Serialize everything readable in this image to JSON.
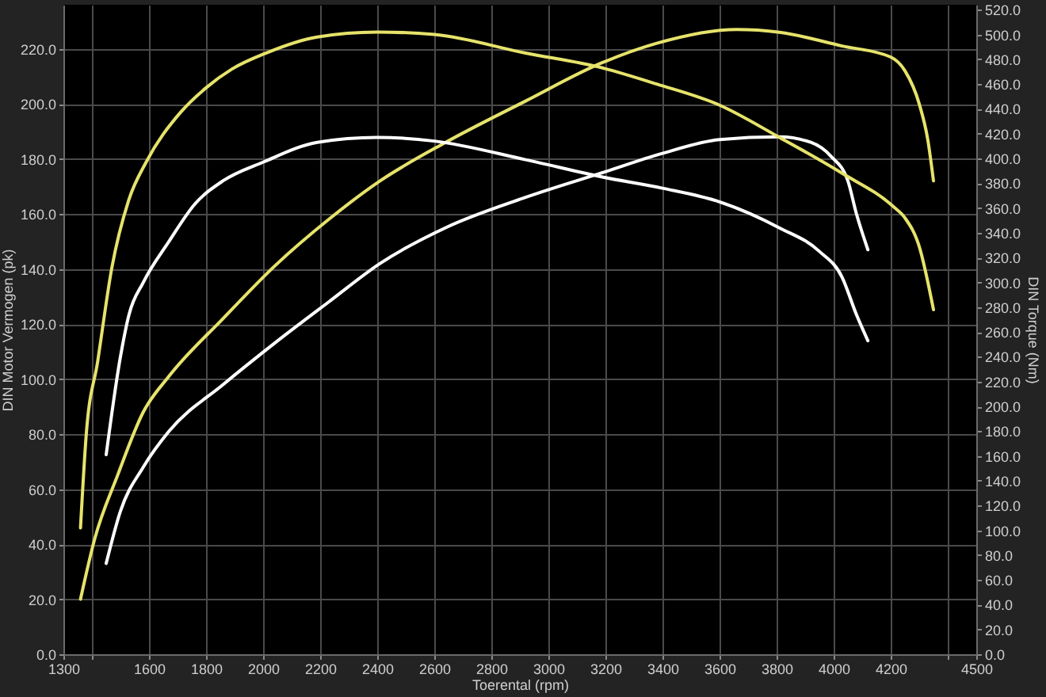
{
  "chart_data": {
    "type": "line",
    "xlabel": "Toerental (rpm)",
    "ylabel": "DIN Motor Vermogen (pk)",
    "y2label": "DIN Torque (Nm)",
    "xlim": [
      1300,
      4500
    ],
    "xticks": [
      1300,
      {
        "value": 1400,
        "label": null
      },
      1600,
      1800,
      2000,
      2200,
      2400,
      2600,
      2800,
      3000,
      3200,
      3400,
      3600,
      3800,
      4000,
      4200,
      {
        "value": 4400,
        "label": null
      },
      4500
    ],
    "ylim": [
      0,
      236
    ],
    "yticks": [
      {
        "value": 0,
        "label": "0.0"
      },
      {
        "value": 20,
        "label": "20.0"
      },
      {
        "value": 40,
        "label": "40.0"
      },
      {
        "value": 60,
        "label": "60.0"
      },
      {
        "value": 80,
        "label": "80.0"
      },
      {
        "value": 100,
        "label": "100.0"
      },
      {
        "value": 120,
        "label": "120.0"
      },
      {
        "value": 140,
        "label": "140.0"
      },
      {
        "value": 160,
        "label": "160.0"
      },
      {
        "value": 180,
        "label": "180.0"
      },
      {
        "value": 200,
        "label": "200.0"
      },
      {
        "value": 220,
        "label": "220.0"
      }
    ],
    "y2lim": [
      0,
      524
    ],
    "y2ticks": [
      {
        "value": 0,
        "label": "0.0"
      },
      {
        "value": 20,
        "label": "20.0"
      },
      {
        "value": 40,
        "label": "40.0"
      },
      {
        "value": 60,
        "label": "60.0"
      },
      {
        "value": 80,
        "label": "80.0"
      },
      {
        "value": 100,
        "label": "100.0"
      },
      {
        "value": 120,
        "label": "120.0"
      },
      {
        "value": 140,
        "label": "140.0"
      },
      {
        "value": 160,
        "label": "160.0"
      },
      {
        "value": 180,
        "label": "180.0"
      },
      {
        "value": 200,
        "label": "200.0"
      },
      {
        "value": 220,
        "label": "220.0"
      },
      {
        "value": 240,
        "label": "240.0"
      },
      {
        "value": 260,
        "label": "260.0"
      },
      {
        "value": 280,
        "label": "280.0"
      },
      {
        "value": 300,
        "label": "300.0"
      },
      {
        "value": 320,
        "label": "320.0"
      },
      {
        "value": 340,
        "label": "340.0"
      },
      {
        "value": 360,
        "label": "360.0"
      },
      {
        "value": 380,
        "label": "380.0"
      },
      {
        "value": 400,
        "label": "400.0"
      },
      {
        "value": 420,
        "label": "420.0"
      },
      {
        "value": 440,
        "label": "440.0"
      },
      {
        "value": 460,
        "label": "460.0"
      },
      {
        "value": 480,
        "label": "480.0"
      },
      {
        "value": 500,
        "label": "500.0"
      },
      {
        "value": 520,
        "label": "520.0"
      }
    ],
    "grid": "x_and_y_left",
    "series": [
      {
        "color": "#e6e36b",
        "x": [
          1360,
          1410,
          1490,
          1580,
          1670,
          1860,
          2040,
          2230,
          2410,
          2640,
          2920,
          3190,
          3380,
          3660,
          3810,
          4030,
          4200,
          4250,
          4300,
          4330,
          4350
        ],
        "values": [
          20,
          42,
          65,
          88,
          101,
          122,
          141,
          158,
          172,
          186,
          201,
          215,
          222,
          227,
          226,
          221,
          217,
          212,
          200,
          187,
          172
        ]
      },
      {
        "color": "#ffffff",
        "x": [
          1450,
          1500,
          1580,
          1670,
          1860,
          2040,
          2230,
          2410,
          2640,
          2920,
          3190,
          3400,
          3600,
          3810,
          3920,
          3990,
          4050,
          4080,
          4120
        ],
        "values": [
          33,
          52,
          68,
          81,
          98,
          113,
          128,
          142,
          155,
          166,
          175,
          182,
          187,
          188,
          186,
          181,
          172,
          160,
          147
        ]
      },
      {
        "color": "#e6e36b",
        "axis": "y2",
        "x": [
          1360,
          1380,
          1420,
          1470,
          1530,
          1590,
          1710,
          1800,
          1890,
          2010,
          2190,
          2400,
          2600,
          2920,
          3190,
          3380,
          3600,
          3810,
          4030,
          4210,
          4250,
          4300,
          4350
        ],
        "values": [
          102,
          177,
          236,
          312,
          367,
          397,
          437,
          457,
          472,
          485,
          498,
          502,
          500,
          485,
          473,
          460,
          443,
          417,
          388,
          361,
          352,
          329,
          278
        ]
      },
      {
        "color": "#ffffff",
        "axis": "y2",
        "x": [
          1450,
          1500,
          1530,
          1580,
          1670,
          1760,
          1860,
          2000,
          2190,
          2400,
          2600,
          2920,
          3190,
          3400,
          3600,
          3810,
          3950,
          4030,
          4080,
          4120
        ],
        "values": [
          161,
          240,
          274,
          300,
          333,
          363,
          382,
          397,
          413,
          417,
          414,
          399,
          385,
          376,
          365,
          344,
          325,
          304,
          274,
          253
        ]
      }
    ]
  }
}
